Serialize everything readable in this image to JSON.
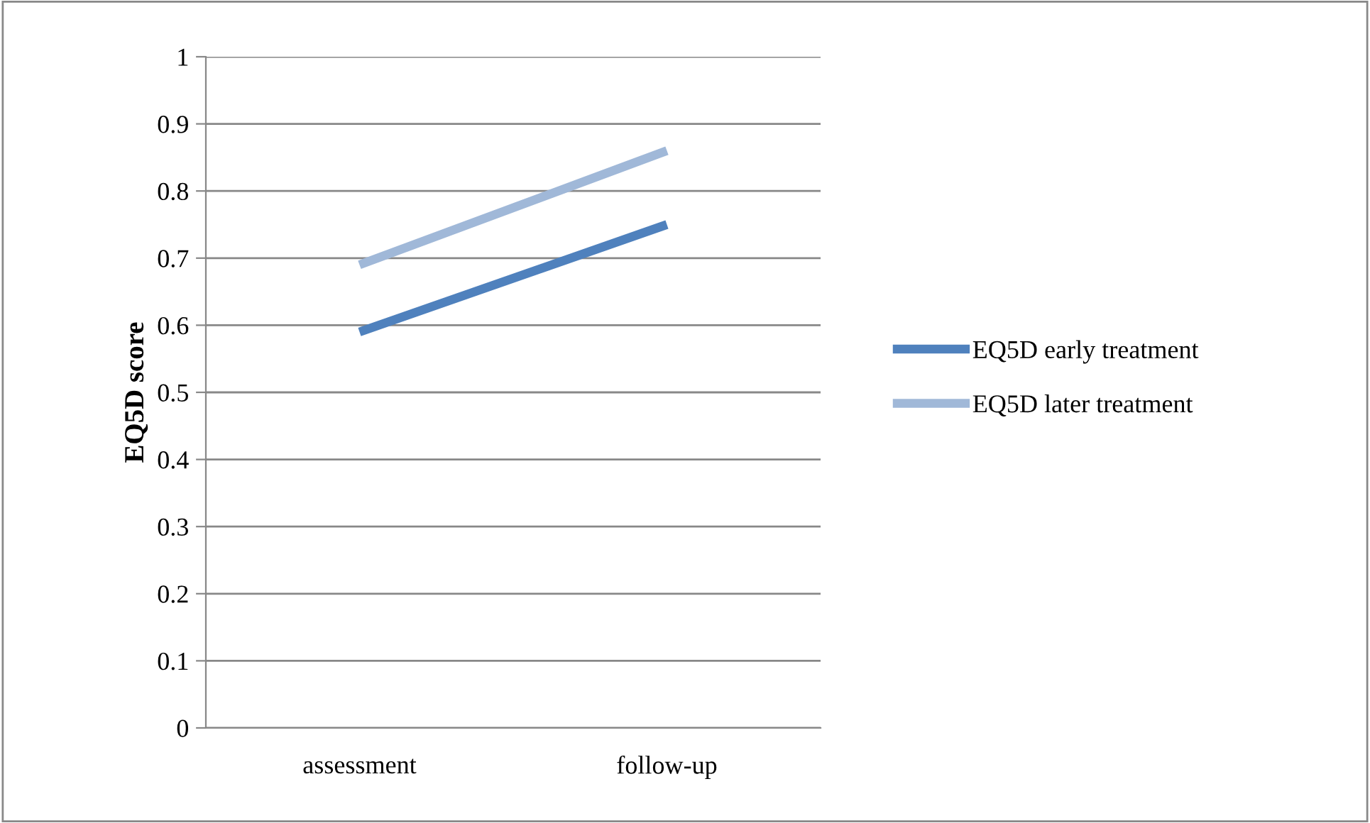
{
  "chart_data": {
    "type": "line",
    "ylabel": "EQ5D score",
    "categories": [
      "assessment",
      "follow-up"
    ],
    "series": [
      {
        "name": "EQ5D early treatment",
        "color": "#4f81bd",
        "values": [
          0.59,
          0.75
        ]
      },
      {
        "name": "EQ5D later treatment",
        "color": "#a0b8d8",
        "values": [
          0.69,
          0.86
        ]
      }
    ],
    "ylim": [
      0,
      1
    ],
    "yticks": [
      0,
      0.1,
      0.2,
      0.3,
      0.4,
      0.5,
      0.6,
      0.7,
      0.8,
      0.9,
      1
    ],
    "grid": "y",
    "legend": "right",
    "marker": "none",
    "line_style": "solid"
  }
}
